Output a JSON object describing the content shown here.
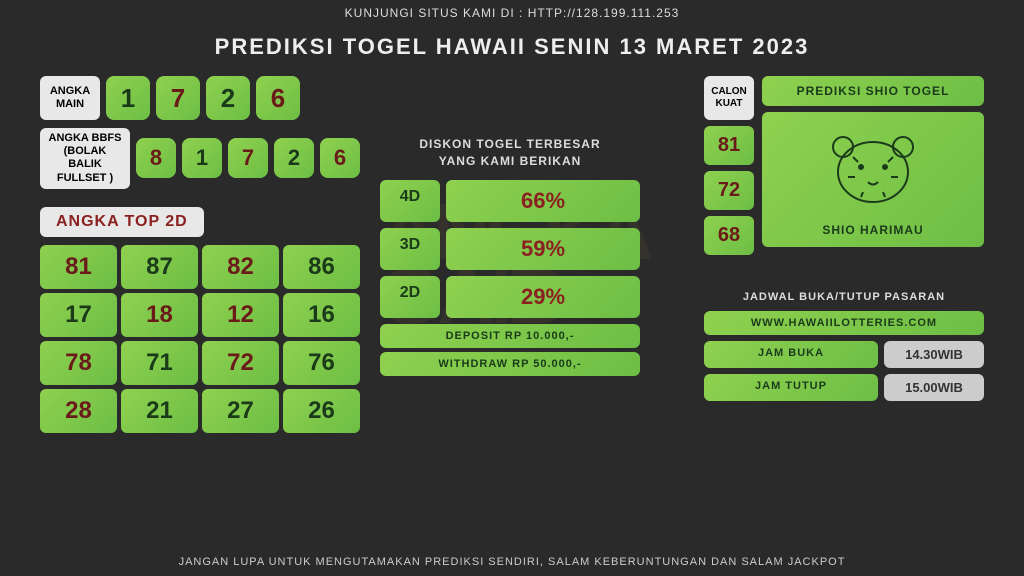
{
  "top_bar": "KUNJUNGI SITUS KAMI DI : HTTP://128.199.111.253",
  "title": "PREDIKSI TOGEL HAWAII SENIN 13 MARET 2023",
  "angka_main": {
    "label": "ANGKA MAIN",
    "nums": [
      "1",
      "7",
      "2",
      "6"
    ],
    "dark": [
      false,
      true,
      false,
      true
    ]
  },
  "angka_bbfs": {
    "label": "ANGKA BBFS (BOLAK BALIK FULLSET )",
    "nums": [
      "8",
      "1",
      "7",
      "2",
      "6"
    ],
    "dark": [
      true,
      false,
      true,
      false,
      true
    ]
  },
  "top2d": {
    "label": "ANGKA TOP 2D",
    "cells": [
      "81",
      "87",
      "82",
      "86",
      "17",
      "18",
      "12",
      "16",
      "78",
      "71",
      "72",
      "76",
      "28",
      "21",
      "27",
      "26"
    ],
    "dark": [
      true,
      false,
      true,
      false,
      false,
      true,
      true,
      false,
      true,
      false,
      true,
      false,
      true,
      false,
      false,
      false
    ]
  },
  "diskon": {
    "title1": "DISKON TOGEL TERBESAR",
    "title2": "YANG KAMI BERIKAN",
    "rows": [
      {
        "k": "4D",
        "v": "66%"
      },
      {
        "k": "3D",
        "v": "59%"
      },
      {
        "k": "2D",
        "v": "29%"
      }
    ],
    "deposit": "DEPOSIT RP 10.000,-",
    "withdraw": "WITHDRAW RP 50.000,-"
  },
  "calon": {
    "label": "CALON KUAT",
    "nums": [
      "81",
      "72",
      "68"
    ]
  },
  "shio": {
    "title": "PREDIKSI SHIO TOGEL",
    "name": "SHIO HARIMAU"
  },
  "jadwal": {
    "title": "JADWAL BUKA/TUTUP PASARAN",
    "site": "WWW.HAWAIILOTTERIES.COM",
    "buka_k": "JAM BUKA",
    "buka_v": "14.30WIB",
    "tutup_k": "JAM TUTUP",
    "tutup_v": "15.00WIB"
  },
  "footer": "JANGAN LUPA UNTUK MENGUTAMAKAN PREDIKSI SENDIRI, SALAM KEBERUNTUNGAN DAN SALAM JACKPOT",
  "colors": {
    "green1": "#8FD14F",
    "green2": "#6DBE45",
    "darknum": "#6b1a1a",
    "lightnum": "#1a3a1a",
    "bg": "#2a2a2a"
  }
}
